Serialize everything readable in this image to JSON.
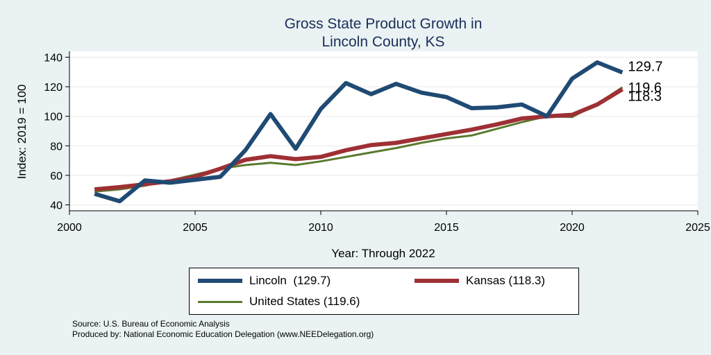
{
  "chart_data": {
    "type": "line",
    "title": [
      "Gross State Product Growth in",
      "Lincoln County, KS"
    ],
    "xlabel": "Year: Through 2022",
    "ylabel": "Index: 2019 = 100",
    "xlim": [
      2000,
      2025
    ],
    "ylim": [
      36,
      144
    ],
    "xticks": [
      2000,
      2005,
      2010,
      2015,
      2020,
      2025
    ],
    "yticks": [
      40,
      60,
      80,
      100,
      120,
      140
    ],
    "grid": true,
    "x": [
      2001,
      2002,
      2003,
      2004,
      2005,
      2006,
      2007,
      2008,
      2009,
      2010,
      2011,
      2012,
      2013,
      2014,
      2015,
      2016,
      2017,
      2018,
      2019,
      2020,
      2021,
      2022
    ],
    "series": [
      {
        "name": "Lincoln",
        "color": "#1f4a73",
        "width": 6,
        "values": [
          47.5,
          42.5,
          56.5,
          55,
          57,
          59,
          77,
          101.5,
          78,
          105,
          122.5,
          115,
          122,
          116,
          113,
          105.5,
          106,
          108,
          100,
          125.5,
          136.5,
          129.7
        ],
        "end_label": "129.7"
      },
      {
        "name": "Kansas",
        "color": "#9e3034",
        "width": 6,
        "values": [
          50.5,
          52,
          54,
          56,
          59,
          64.5,
          70.5,
          73,
          71,
          72.5,
          77,
          80.5,
          82,
          85,
          88,
          91,
          94.5,
          98.5,
          100,
          101,
          108,
          118.3
        ],
        "end_label": "118.3"
      },
      {
        "name": "United States",
        "color": "#5a7a2e",
        "width": 3,
        "values": [
          49,
          50.5,
          53,
          56.5,
          60.5,
          64.5,
          67,
          68.5,
          67,
          69.5,
          72.5,
          75.5,
          78.5,
          82,
          85,
          87,
          91.5,
          96,
          100,
          99.5,
          108.5,
          119.6
        ],
        "end_label": "119.6"
      }
    ],
    "legend": {
      "position": "bottom",
      "entries": [
        {
          "label": "Lincoln  (129.7)",
          "color": "#1f4a73"
        },
        {
          "label": "Kansas (118.3)",
          "color": "#9e3034"
        },
        {
          "label": "United States (119.6)",
          "color": "#5a7a2e"
        }
      ]
    }
  },
  "notes": {
    "source": "Source: U.S. Bureau of Economic Analysis",
    "produced_by": "Produced by: National Economic Education Delegation (www.NEEDelegation.org)"
  }
}
